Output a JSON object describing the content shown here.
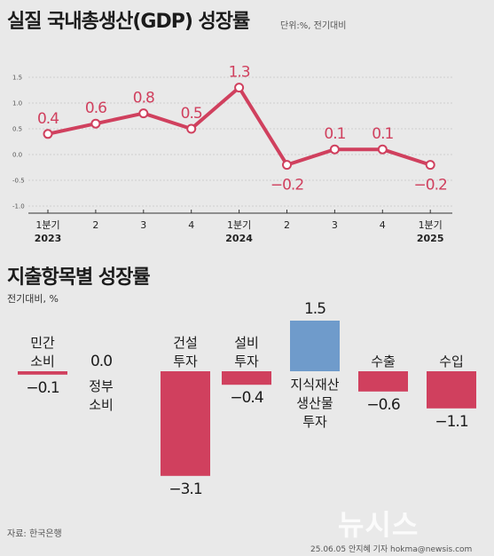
{
  "title": "실질 국내총생산(GDP) 성장률",
  "unit_note": "단위:%, 전기대비",
  "subtitle": "지출항목별 성장률",
  "sub_unit_note": "전기대비, %",
  "source": "자료: 한국은행",
  "credit": "25.06.05 안지혜 기자 hokma@newsis.com",
  "logo": "뉴시스",
  "colors": {
    "line": "#d0405e",
    "negative_bar": "#d0405e",
    "positive_bar": "#6f9bcb"
  },
  "chart_data": [
    {
      "type": "line",
      "title": "실질 국내총생산(GDP) 성장률",
      "x": [
        "1분기",
        "2",
        "3",
        "4",
        "1분기",
        "2",
        "3",
        "4",
        "1분기"
      ],
      "year_labels": [
        "2023",
        "",
        "",
        "",
        "2024",
        "",
        "",
        "",
        "2025"
      ],
      "values": [
        0.4,
        0.6,
        0.8,
        0.5,
        1.3,
        -0.2,
        0.1,
        0.1,
        -0.2
      ],
      "value_labels": [
        "0.4",
        "0.6",
        "0.8",
        "0.5",
        "1.3",
        "−0.2",
        "0.1",
        "0.1",
        "−0.2"
      ],
      "yticks": [
        "1.5",
        "1.0",
        "0.5",
        "0.0",
        "-0.5",
        "-1.0"
      ],
      "ylim": [
        -1.0,
        1.5
      ],
      "grid": true
    },
    {
      "type": "bar",
      "title": "지출항목별 성장률",
      "categories": [
        [
          "민간",
          "소비"
        ],
        [
          "정부",
          "소비"
        ],
        [
          "건설",
          "투자"
        ],
        [
          "설비",
          "투자"
        ],
        [
          "지식재산",
          "생산물",
          "투자"
        ],
        [
          "수출"
        ],
        [
          "수입"
        ]
      ],
      "values": [
        -0.1,
        0.0,
        -3.1,
        -0.4,
        1.5,
        -0.6,
        -1.1
      ],
      "value_labels": [
        "−0.1",
        "0.0",
        "−3.1",
        "−0.4",
        "1.5",
        "−0.6",
        "−1.1"
      ]
    }
  ]
}
